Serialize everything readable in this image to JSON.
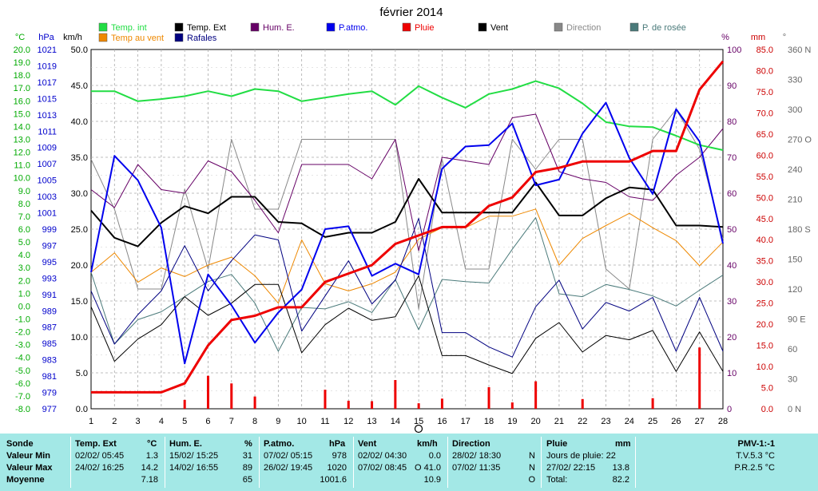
{
  "title": "février 2014",
  "legend": [
    {
      "label": "Temp. int",
      "color": "#22dd44"
    },
    {
      "label": "Temp. Ext",
      "color": "#000000"
    },
    {
      "label": "Hum. E.",
      "color": "#660066"
    },
    {
      "label": "P.atmo.",
      "color": "#0000ee"
    },
    {
      "label": "Pluie",
      "color": "#ee0000"
    },
    {
      "label": "Vent",
      "color": "#000000"
    },
    {
      "label": "Direction",
      "color": "#888888"
    },
    {
      "label": "P. de rosée",
      "color": "#4a7a7a"
    },
    {
      "label": "Temp au vent",
      "color": "#ee8800"
    },
    {
      "label": "Rafales",
      "color": "#000080"
    }
  ],
  "axis_units": {
    "temp": "°C",
    "press": "hPa",
    "wind": "km/h",
    "hum": "%",
    "rain": "mm",
    "dir": "°"
  },
  "chart_data": {
    "type": "line",
    "title": "février 2014",
    "x": [
      1,
      2,
      3,
      4,
      5,
      6,
      7,
      8,
      9,
      10,
      11,
      12,
      13,
      14,
      15,
      16,
      17,
      18,
      19,
      20,
      21,
      22,
      23,
      24,
      25,
      26,
      27,
      28
    ],
    "axes": {
      "temp_ticks": [
        "20.0",
        "19.0",
        "18.0",
        "17.0",
        "16.0",
        "15.0",
        "14.0",
        "13.0",
        "12.0",
        "11.0",
        "10.0",
        "9.0",
        "8.0",
        "7.0",
        "6.0",
        "5.0",
        "4.0",
        "3.0",
        "2.0",
        "1.0",
        "0.0",
        "-1.0",
        "-2.0",
        "-3.0",
        "-4.0",
        "-5.0",
        "-6.0",
        "-7.0",
        "-8.0"
      ],
      "press_ticks": [
        "1021",
        "1019",
        "1017",
        "1015",
        "1013",
        "1011",
        "1009",
        "1007",
        "1005",
        "1003",
        "1001",
        "999",
        "997",
        "995",
        "993",
        "991",
        "989",
        "987",
        "985",
        "983",
        "981",
        "979",
        "977"
      ],
      "wind_ticks": [
        "50.0",
        "45.0",
        "40.0",
        "35.0",
        "30.0",
        "25.0",
        "20.0",
        "15.0",
        "10.0",
        "5.0",
        "0.0"
      ],
      "hum_ticks": [
        "100",
        "90",
        "80",
        "70",
        "60",
        "50",
        "40",
        "30",
        "20",
        "10",
        "0"
      ],
      "rain_ticks": [
        "85.0",
        "80.0",
        "75.0",
        "70.0",
        "65.0",
        "60.0",
        "55.0",
        "50.0",
        "45.0",
        "40.0",
        "35.0",
        "30.0",
        "25.0",
        "20.0",
        "15.0",
        "10.0",
        "5.0",
        "0.0"
      ],
      "dir_ticks": [
        "360 N",
        "330",
        "300",
        "270 O",
        "240",
        "210",
        "180 S",
        "150",
        "120",
        "90 E",
        "60",
        "30",
        "0 N"
      ],
      "wind_range": [
        0,
        50
      ],
      "rain_range": [
        0,
        85
      ],
      "hum_range": [
        0,
        100
      ],
      "dir_range": [
        0,
        360
      ]
    },
    "series": [
      {
        "name": "Temp. int",
        "axis": "wind",
        "color": "#22dd44",
        "width": 2,
        "values": [
          44.2,
          44.2,
          42.8,
          43.1,
          43.5,
          44.2,
          43.5,
          44.5,
          44.2,
          42.8,
          43.3,
          43.8,
          44.2,
          42.3,
          44.9,
          43.3,
          41.9,
          43.8,
          44.5,
          45.6,
          44.6,
          42.5,
          39.9,
          39.3,
          39.2,
          38.0,
          36.7,
          36.0
        ]
      },
      {
        "name": "Temp. Ext",
        "axis": "wind",
        "color": "#000000",
        "width": 2,
        "values": [
          27.6,
          23.8,
          22.6,
          25.9,
          28.2,
          27.2,
          29.5,
          29.5,
          26.0,
          25.8,
          23.9,
          24.5,
          24.5,
          26.0,
          32.0,
          27.3,
          27.3,
          27.3,
          27.3,
          31.5,
          26.9,
          26.9,
          29.3,
          30.8,
          30.5,
          25.5,
          25.5,
          25.3
        ]
      },
      {
        "name": "Hum. E.",
        "axis": "hum",
        "color": "#660066",
        "width": 1,
        "values": [
          61,
          56,
          68,
          61,
          60,
          69,
          66,
          58,
          49,
          68,
          68,
          68,
          64,
          75,
          44,
          70,
          69,
          68,
          81,
          82,
          66,
          64,
          63,
          59,
          58,
          65,
          70,
          78
        ]
      },
      {
        "name": "P.atmo.",
        "axis": "wind",
        "color": "#0000ee",
        "width": 2,
        "values": [
          19.0,
          35.2,
          31.8,
          25.2,
          6.3,
          18.7,
          14.4,
          9.2,
          13.4,
          16.6,
          25.0,
          25.4,
          18.5,
          20.2,
          18.7,
          33.4,
          36.5,
          36.7,
          39.7,
          31.1,
          31.9,
          38.3,
          42.6,
          34.9,
          29.9,
          41.7,
          37.2,
          23.0
        ]
      },
      {
        "name": "Pluie",
        "axis": "rain",
        "color": "#ee0000",
        "width": 3,
        "values": [
          3.9,
          3.9,
          3.9,
          3.9,
          6.0,
          15.0,
          21.0,
          22.0,
          24.0,
          24.0,
          30.0,
          32.0,
          34.0,
          39.0,
          41.0,
          43.0,
          43.0,
          48.0,
          50.0,
          56.0,
          57.0,
          58.5,
          58.5,
          58.5,
          61.0,
          61.0,
          75.5,
          82.2
        ]
      },
      {
        "name": "Pluie (jour)",
        "axis": "rain",
        "color": "#ee0000",
        "width": 3,
        "values": [
          0,
          0,
          0,
          0,
          2.1,
          7.8,
          6.0,
          2.9,
          0,
          0,
          4.5,
          1.9,
          1.8,
          6.8,
          1.3,
          2.4,
          0,
          5.1,
          1.5,
          6.5,
          0,
          2.3,
          0,
          0,
          2.5,
          0,
          14.5,
          0
        ]
      },
      {
        "name": "Vent",
        "axis": "wind",
        "color": "#000000",
        "width": 1,
        "values": [
          14.2,
          6.6,
          9.7,
          11.7,
          15.6,
          13.0,
          14.7,
          17.3,
          17.3,
          7.8,
          11.7,
          14.0,
          12.3,
          12.8,
          18.5,
          7.4,
          7.4,
          6.1,
          4.9,
          9.8,
          12.0,
          7.9,
          10.2,
          9.6,
          10.9,
          5.2,
          10.7,
          5.2
        ]
      },
      {
        "name": "Direction",
        "axis": "dir",
        "color": "#888888",
        "width": 1,
        "values": [
          250,
          200,
          120,
          120,
          220,
          140,
          270,
          200,
          200,
          270,
          270,
          270,
          270,
          270,
          100,
          250,
          140,
          140,
          270,
          240,
          270,
          270,
          140,
          120,
          270,
          300,
          260,
          170
        ]
      },
      {
        "name": "P. de rosée",
        "axis": "wind",
        "color": "#4a7a7a",
        "width": 1,
        "values": [
          19.0,
          9.0,
          12.4,
          13.5,
          15.6,
          17.7,
          18.7,
          14.7,
          8.0,
          14.1,
          13.9,
          14.9,
          13.4,
          18.0,
          11.0,
          18.0,
          17.7,
          17.5,
          22.2,
          26.6,
          16.0,
          15.6,
          17.3,
          16.6,
          15.7,
          14.3,
          16.5,
          18.6
        ]
      },
      {
        "name": "Temp au vent",
        "axis": "wind",
        "color": "#ee8800",
        "width": 1,
        "values": [
          19.0,
          21.7,
          17.6,
          19.6,
          18.4,
          20.0,
          21.1,
          18.5,
          14.7,
          23.5,
          17.4,
          16.4,
          17.4,
          19.0,
          23.6,
          25.2,
          25.2,
          26.8,
          26.8,
          27.8,
          20.0,
          23.7,
          25.5,
          27.2,
          25.2,
          23.4,
          19.9,
          23.2
        ]
      },
      {
        "name": "Rafales",
        "axis": "wind",
        "color": "#000080",
        "width": 1,
        "values": [
          16.4,
          9.0,
          13.1,
          16.4,
          22.7,
          16.4,
          20.6,
          24.2,
          23.5,
          10.8,
          15.7,
          20.6,
          14.6,
          17.9,
          26.5,
          10.6,
          10.6,
          8.6,
          7.2,
          14.2,
          17.9,
          11.1,
          14.8,
          13.6,
          15.5,
          8.0,
          15.5,
          8.0
        ]
      }
    ]
  },
  "stats": {
    "row_labels": [
      "Sonde",
      "Valeur Min",
      "Valeur Max",
      "Moyenne"
    ],
    "temp": {
      "header": "Temp. Ext",
      "unit": "°C",
      "min_date": "02/02/  05:45",
      "min_val": "1.3",
      "max_date": "24/02/  16:25",
      "max_val": "14.2",
      "avg": "7.18"
    },
    "hum": {
      "header": "Hum. E.",
      "unit": "%",
      "min_date": "15/02/  15:25",
      "min_val": "31",
      "max_date": "14/02/  16:55",
      "max_val": "89",
      "avg": "65"
    },
    "press": {
      "header": "P.atmo.",
      "unit": "hPa",
      "min_date": "07/02/  05:15",
      "min_val": "978",
      "max_date": "26/02/  19:45",
      "max_val": "1020",
      "avg": "1001.6"
    },
    "wind": {
      "header": "Vent",
      "unit": "km/h",
      "min_date": "02/02/  04:30",
      "min_val": "0.0",
      "max_date": "07/02/  08:45",
      "max_dir": "O",
      "max_val": "41.0",
      "avg": "10.9"
    },
    "dir": {
      "header": "Direction",
      "min_date": "28/02/  18:30",
      "min_val": "N",
      "max_date": "07/02/  11:35",
      "max_val": "N",
      "avg": "O"
    },
    "rain": {
      "header": "Pluie",
      "unit": "mm",
      "row1": "Jours de pluie: 22",
      "row2_date": "27/02/  22:15",
      "row2_val": "13.8",
      "row3_label": "Total:",
      "row3_val": "82.2"
    },
    "pmv": {
      "header": "PMV-1:-1",
      "row1": "T.V.5.3 °C",
      "row2": "P.R.2.5 °C"
    }
  }
}
